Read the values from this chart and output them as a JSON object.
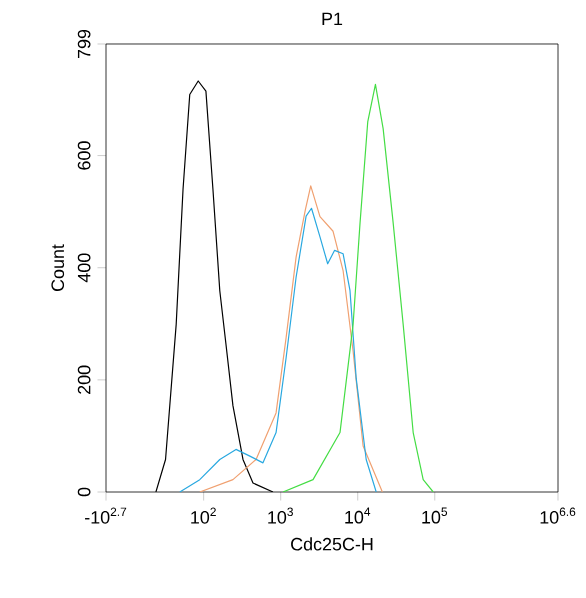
{
  "chart_data": {
    "type": "line",
    "title": "P1",
    "xlabel": "Cdc25C-H",
    "ylabel": "Count",
    "log": "x",
    "xlim": [
      5.4,
      3981000
    ],
    "ylim": [
      0,
      799
    ],
    "xticks": [
      {
        "value": 5.4,
        "label": "-10$^{2.7}$"
      },
      {
        "value": 100,
        "label": "10$^{2}$"
      },
      {
        "value": 1000,
        "label": "10$^{3}$"
      },
      {
        "value": 10000,
        "label": "10$^{4}$"
      },
      {
        "value": 100000,
        "label": "10$^{5}$"
      },
      {
        "value": 3981000,
        "label": "10$^{6.6}$"
      }
    ],
    "yticks": [
      0,
      200,
      400,
      600,
      799
    ],
    "grid": false,
    "marker": "none",
    "line_style": "solid",
    "series": [
      {
        "color": "#000000",
        "x": [
          24,
          32,
          44,
          54,
          66,
          85,
          107,
          132,
          162,
          195,
          240,
          324,
          437,
          794
        ],
        "values": [
          0,
          58,
          299,
          540,
          709,
          733,
          715,
          540,
          359,
          263,
          154,
          58,
          16,
          0
        ]
      },
      {
        "color": "#f0a070",
        "x": [
          89,
          240,
          479,
          871,
          1175,
          1585,
          2089,
          2455,
          3236,
          4786,
          6457,
          8710,
          11750,
          20890
        ],
        "values": [
          0,
          22,
          58,
          141,
          275,
          419,
          503,
          546,
          491,
          465,
          395,
          251,
          82,
          0
        ]
      },
      {
        "color": "#29a8e0",
        "x": [
          49,
          89,
          162,
          263,
          398,
          589,
          871,
          1175,
          1585,
          2138,
          2512,
          3236,
          4074,
          5012,
          6457,
          7943,
          9550,
          12880,
          17380
        ],
        "values": [
          0,
          22,
          58,
          76,
          64,
          52,
          106,
          239,
          383,
          492,
          506,
          455,
          407,
          431,
          425,
          359,
          203,
          58,
          0
        ]
      },
      {
        "color": "#44dd44",
        "x": [
          1072,
          2630,
          5888,
          8710,
          10720,
          13490,
          16980,
          21380,
          28840,
          38900,
          52480,
          70790,
          95500
        ],
        "values": [
          0,
          22,
          106,
          299,
          480,
          660,
          727,
          648,
          480,
          299,
          106,
          22,
          0
        ]
      }
    ]
  }
}
